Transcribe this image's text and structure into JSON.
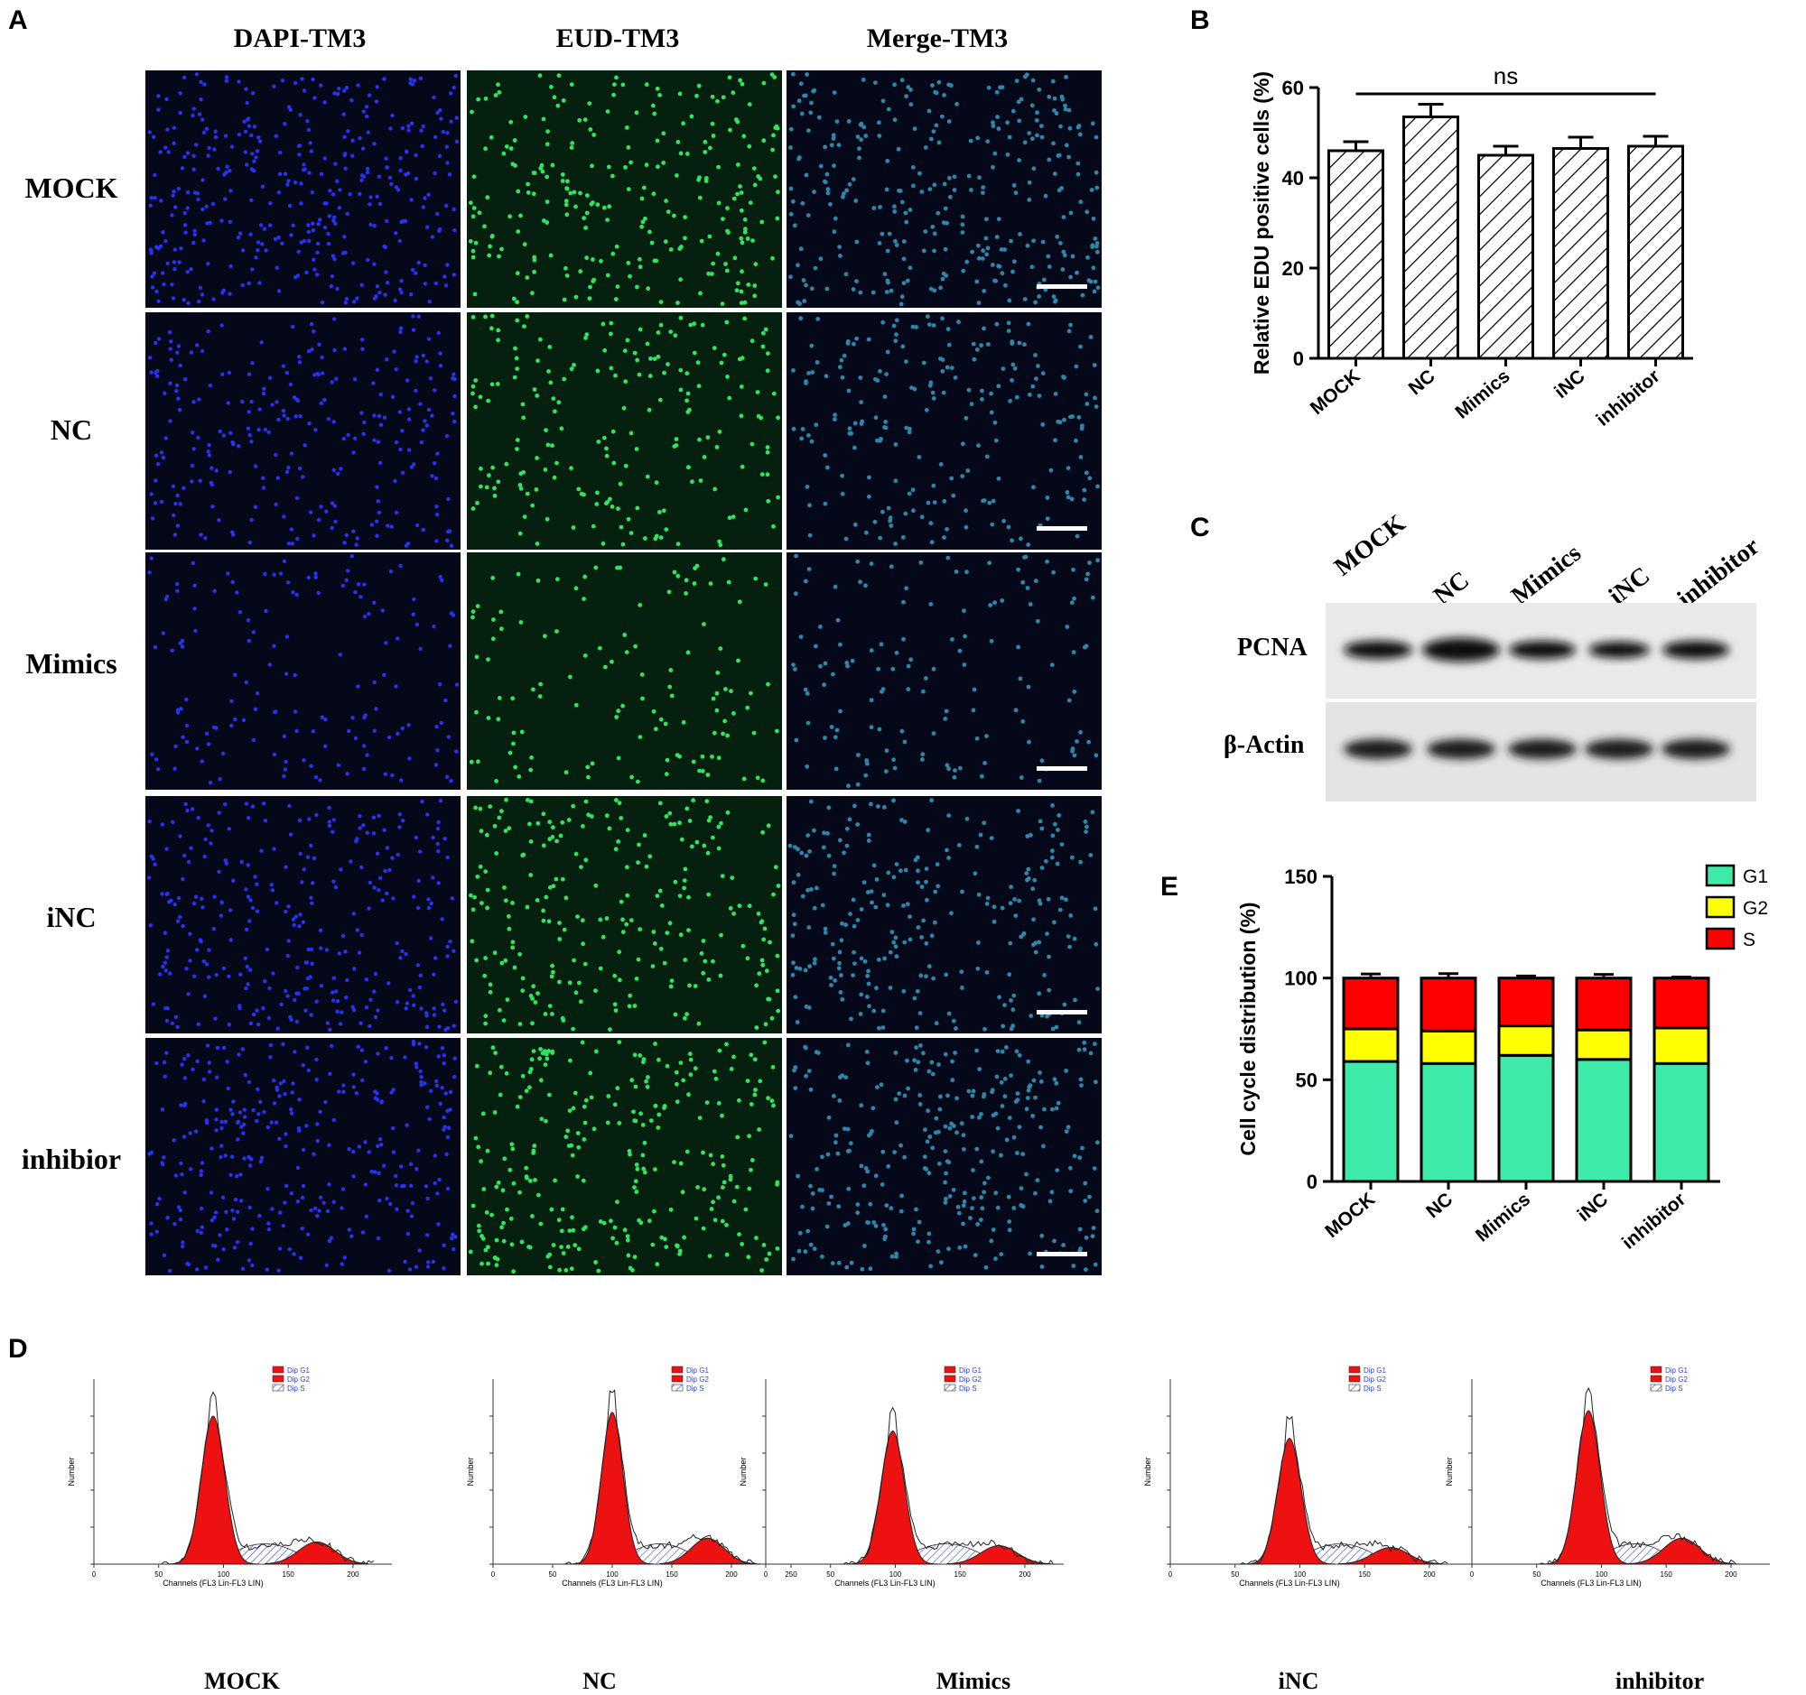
{
  "panel_labels": {
    "a": "A",
    "b": "B",
    "c": "C",
    "d": "D",
    "e": "E"
  },
  "microscopy": {
    "columns": [
      "DAPI-TM3",
      "EUD-TM3",
      "Merge-TM3"
    ],
    "rows": [
      "MOCK",
      "NC",
      "Mimics",
      "iNC",
      "inhibior"
    ],
    "colors": {
      "dapi": "#2a35ff",
      "edu": "#33ee66",
      "merge": "#39a6cf",
      "bg": "#050818"
    }
  },
  "western_blot": {
    "lanes": [
      "MOCK",
      "NC",
      "Mimics",
      "iNC",
      "inhibitor"
    ],
    "bands": [
      "PCNA",
      "β-Actin"
    ]
  },
  "flow_cytometry": {
    "groups": [
      "MOCK",
      "NC",
      "Mimics",
      "iNC",
      "inhibitor"
    ],
    "legend": [
      "Dip G1",
      "Dip G2",
      "Dip S"
    ],
    "ylabel": "Number",
    "xlabel": "Channels (FL3 Lin-FL3 LIN)"
  },
  "chart_data": [
    {
      "id": "B",
      "type": "bar",
      "categories": [
        "MOCK",
        "NC",
        "Mimics",
        "iNC",
        "inhibitor"
      ],
      "values": [
        46,
        53.5,
        45,
        46.5,
        47
      ],
      "errors": [
        2,
        2.8,
        2,
        2.5,
        2.2
      ],
      "ylabel": "Relative EDU positive cells (%)",
      "ylim": [
        0,
        60
      ],
      "yticks": [
        0,
        20,
        40,
        60
      ],
      "annotation": "ns",
      "fill": "diagonal-hatch"
    },
    {
      "id": "E",
      "type": "bar",
      "stacked": true,
      "categories": [
        "MOCK",
        "NC",
        "Mimics",
        "iNC",
        "inhibitor"
      ],
      "ylabel": "Cell cycle distribution (%)",
      "ylim": [
        0,
        150
      ],
      "yticks": [
        0,
        50,
        100,
        150
      ],
      "series": [
        {
          "name": "G1",
          "color": "#3eeaa8",
          "values": [
            59,
            58,
            62,
            60,
            58
          ],
          "errors": [
            1,
            2,
            1.2,
            1.3,
            1.5
          ]
        },
        {
          "name": "G2",
          "color": "#ffff00",
          "values": [
            16,
            16,
            14.5,
            14.5,
            17.5
          ],
          "errors": [
            1.5,
            1,
            1,
            1,
            1
          ]
        },
        {
          "name": "S",
          "color": "#ff0000",
          "values": [
            25,
            26,
            23.5,
            25.5,
            24.5
          ],
          "errors": [
            2,
            2.2,
            1,
            1.8,
            0.5
          ]
        }
      ]
    }
  ]
}
